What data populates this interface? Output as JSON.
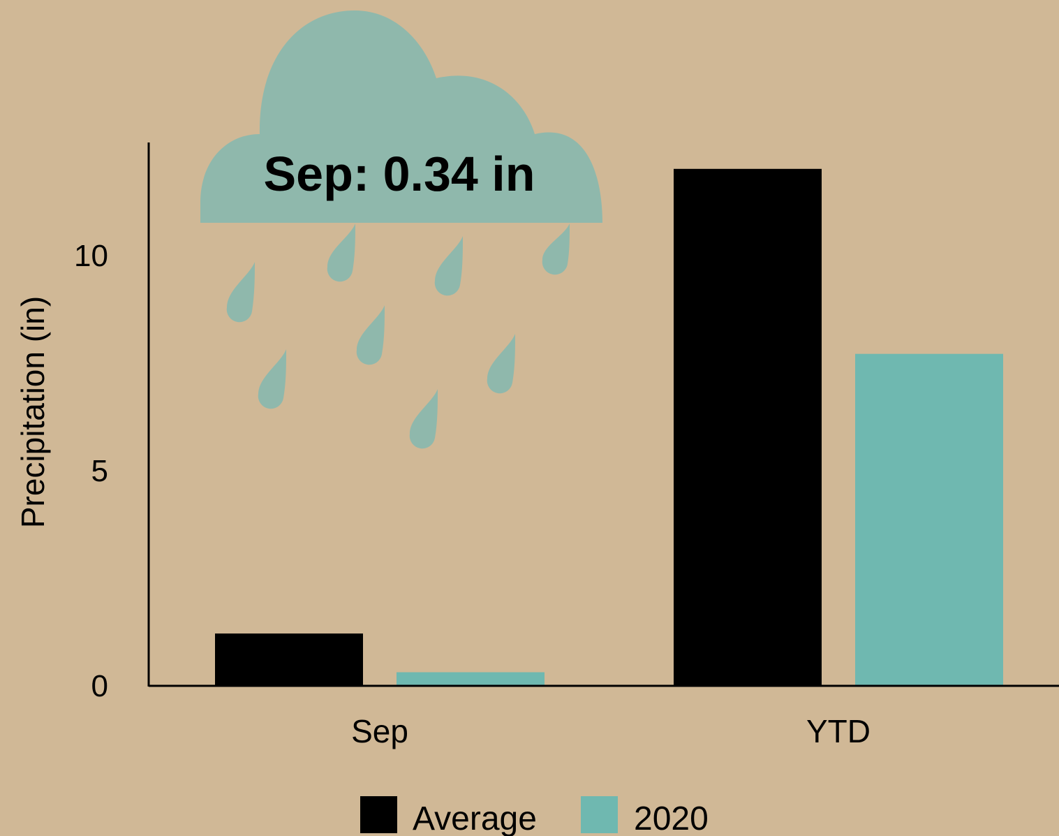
{
  "colors": {
    "background": "#d0b896",
    "average": "#000000",
    "year_2020": "#6fb8b0",
    "cloud": "#8fb8ac"
  },
  "annotation": {
    "text": "Sep: 0.34 in",
    "icon": "rain-cloud-icon"
  },
  "chart_data": {
    "type": "bar",
    "categories": [
      "Sep",
      "YTD"
    ],
    "series": [
      {
        "name": "Average",
        "values": [
          1.2,
          12.0
        ]
      },
      {
        "name": "2020",
        "values": [
          0.3,
          7.7
        ]
      }
    ],
    "xlabel": "",
    "ylabel": "Precipitation (in)",
    "yticks": [
      0,
      5,
      10
    ],
    "ylim": [
      0,
      12.6
    ],
    "grid": false,
    "legend_position": "bottom"
  }
}
